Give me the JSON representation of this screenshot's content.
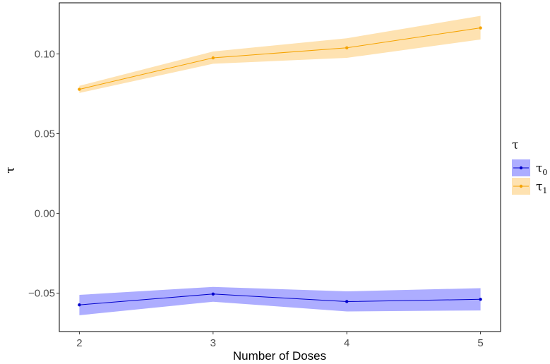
{
  "chart_data": {
    "type": "line",
    "xlabel": "Number of Doses",
    "ylabel": "τ",
    "x": [
      2,
      3,
      4,
      5
    ],
    "xlim": [
      1.85,
      5.15
    ],
    "ylim": [
      -0.074,
      0.132
    ],
    "x_ticks": [
      "2",
      "3",
      "4",
      "5"
    ],
    "y_ticks": [
      -0.05,
      0.0,
      0.05,
      0.1
    ],
    "y_tick_labels": [
      "−0.05",
      "0.00",
      "0.05",
      "0.10"
    ],
    "grid": false,
    "legend": {
      "title": "τ",
      "placement": "right",
      "entries": [
        {
          "base": "τ",
          "sub": "0"
        },
        {
          "base": "τ",
          "sub": "1"
        }
      ]
    },
    "series": [
      {
        "key": "tau0",
        "color": "#0000cc",
        "fill": "#7777ff",
        "values": [
          -0.0573,
          -0.0505,
          -0.0552,
          -0.0538
        ],
        "lower": [
          -0.0638,
          -0.0553,
          -0.0614,
          -0.0608
        ],
        "upper": [
          -0.051,
          -0.046,
          -0.0488,
          -0.0468
        ]
      },
      {
        "key": "tau1",
        "color": "#f5a300",
        "fill": "#fecf7d",
        "values": [
          0.0778,
          0.0975,
          0.1038,
          0.1163
        ],
        "lower": [
          0.0755,
          0.0938,
          0.0975,
          0.109
        ],
        "upper": [
          0.08,
          0.1015,
          0.1098,
          0.1238
        ]
      }
    ]
  }
}
